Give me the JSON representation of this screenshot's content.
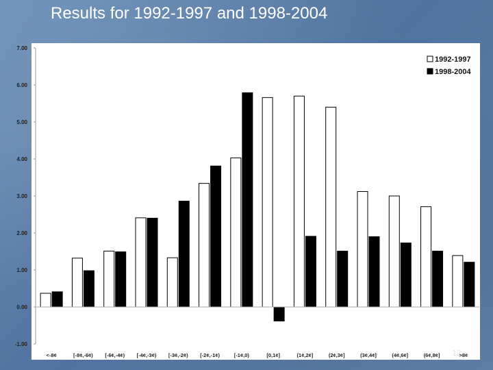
{
  "slide": {
    "title": "Results for 1992-1997 and 1998-2004",
    "page_number": "12"
  },
  "chart_data": {
    "type": "bar",
    "title": "",
    "xlabel": "",
    "ylabel": "",
    "ylim": [
      -1,
      7
    ],
    "yticks": [
      7,
      6,
      5,
      4,
      3,
      2,
      1,
      0,
      -1
    ],
    "ytick_labels": [
      "7.00",
      "6.00",
      "5.00",
      "4.00",
      "3.00",
      "2.00",
      "1.00",
      "0.00",
      "-1.00"
    ],
    "grid": false,
    "legend": "top-right",
    "categories": [
      "<-8¢",
      "[-8¢,-6¢)",
      "[-6¢,-4¢)",
      "[-4¢,-3¢)",
      "[-3¢,-2¢)",
      "[-2¢,-1¢)",
      "[-1¢,0)",
      "[0,1¢]",
      "(1¢,2¢]",
      "(2¢,3¢]",
      "(3¢,4¢]",
      "(4¢,6¢]",
      "(6¢,8¢]",
      ">8¢"
    ],
    "series": [
      {
        "name": "1992-1997",
        "color": "#ffffff",
        "values": [
          0.37,
          1.32,
          1.51,
          2.41,
          1.33,
          3.34,
          4.03,
          5.66,
          5.7,
          5.4,
          3.12,
          3.0,
          2.71,
          1.39
        ]
      },
      {
        "name": "1998-2004",
        "color": "#000000",
        "values": [
          0.41,
          0.98,
          1.49,
          2.4,
          2.86,
          3.81,
          5.79,
          -0.38,
          1.91,
          1.51,
          1.9,
          1.73,
          1.51,
          1.21
        ]
      }
    ]
  }
}
